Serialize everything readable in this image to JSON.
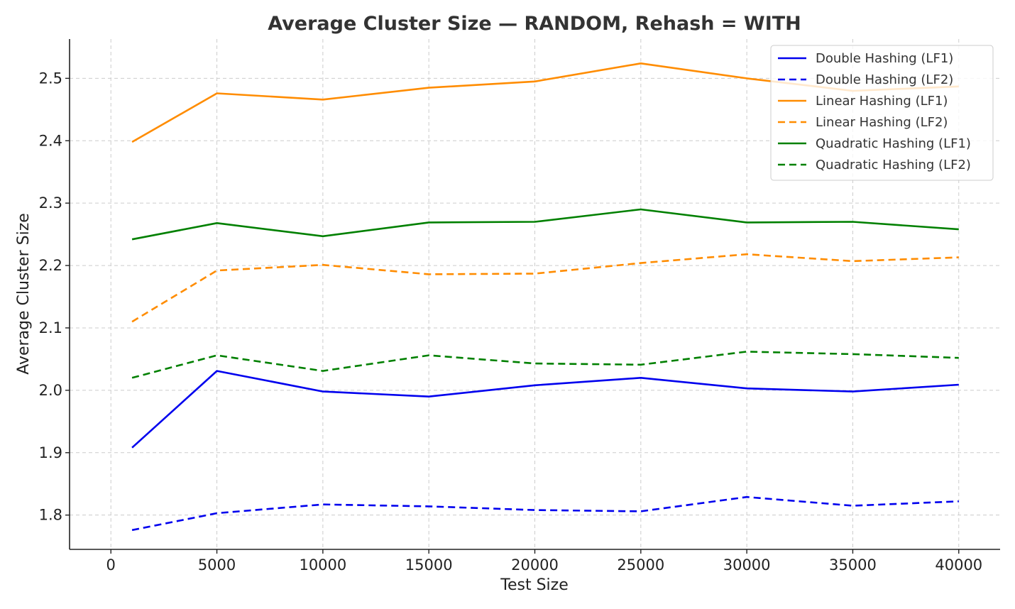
{
  "chart_data": {
    "type": "line",
    "title": "Average Cluster Size — RANDOM, Rehash = WITH",
    "xlabel": "Test Size",
    "ylabel": "Average Cluster Size",
    "xlim": [
      -1950,
      41950
    ],
    "ylim": [
      1.745,
      2.563
    ],
    "x_ticks": [
      0,
      5000,
      10000,
      15000,
      20000,
      25000,
      30000,
      35000,
      40000
    ],
    "x_tick_labels": [
      "0",
      "5000",
      "10000",
      "15000",
      "20000",
      "25000",
      "30000",
      "35000",
      "40000"
    ],
    "y_ticks": [
      1.8,
      1.9,
      2.0,
      2.1,
      2.2,
      2.3,
      2.4,
      2.5
    ],
    "y_tick_labels": [
      "1.8",
      "1.9",
      "2.0",
      "2.1",
      "2.2",
      "2.3",
      "2.4",
      "2.5"
    ],
    "grid": true,
    "legend_position": "top-right",
    "x": [
      1000,
      5000,
      10000,
      15000,
      20000,
      25000,
      30000,
      35000,
      40000
    ],
    "series": [
      {
        "name": "Double Hashing (LF1)",
        "color": "#0000ee",
        "style": "solid",
        "values": [
          1.908,
          2.031,
          1.998,
          1.99,
          2.008,
          2.02,
          2.003,
          1.998,
          2.009
        ]
      },
      {
        "name": "Double Hashing (LF2)",
        "color": "#0000ee",
        "style": "dashed",
        "values": [
          1.776,
          1.803,
          1.817,
          1.814,
          1.808,
          1.806,
          1.829,
          1.815,
          1.822
        ]
      },
      {
        "name": "Linear Hashing (LF1)",
        "color": "#ff8c00",
        "style": "solid",
        "values": [
          2.398,
          2.476,
          2.466,
          2.485,
          2.495,
          2.524,
          2.5,
          2.48,
          2.487
        ]
      },
      {
        "name": "Linear Hashing (LF2)",
        "color": "#ff8c00",
        "style": "dashed",
        "values": [
          2.11,
          2.192,
          2.201,
          2.186,
          2.187,
          2.204,
          2.218,
          2.207,
          2.213
        ]
      },
      {
        "name": "Quadratic Hashing (LF1)",
        "color": "#008000",
        "style": "solid",
        "values": [
          2.242,
          2.268,
          2.247,
          2.269,
          2.27,
          2.29,
          2.269,
          2.27,
          2.258
        ]
      },
      {
        "name": "Quadratic Hashing (LF2)",
        "color": "#008000",
        "style": "dashed",
        "values": [
          2.02,
          2.056,
          2.031,
          2.056,
          2.043,
          2.041,
          2.062,
          2.058,
          2.052
        ]
      }
    ]
  }
}
